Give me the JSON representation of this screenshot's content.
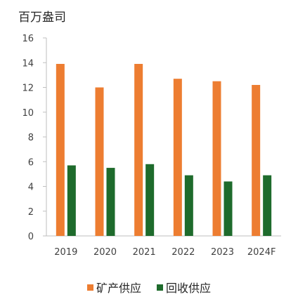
{
  "chart_data": {
    "type": "bar",
    "unit_label": "百万盎司",
    "categories": [
      "2019",
      "2020",
      "2021",
      "2022",
      "2023",
      "2024F"
    ],
    "series": [
      {
        "name": "矿产供应",
        "color": "#ED7D31",
        "values": [
          13.9,
          12.0,
          13.9,
          12.7,
          12.5,
          12.2
        ]
      },
      {
        "name": "回收供应",
        "color": "#1E6B2C",
        "values": [
          5.7,
          5.5,
          5.8,
          4.9,
          4.4,
          4.9
        ]
      }
    ],
    "ylim": [
      0,
      16
    ],
    "yticks": [
      "0",
      "2",
      "4",
      "6",
      "8",
      "10",
      "12",
      "14",
      "16"
    ],
    "grid": false,
    "legend_position": "bottom"
  }
}
